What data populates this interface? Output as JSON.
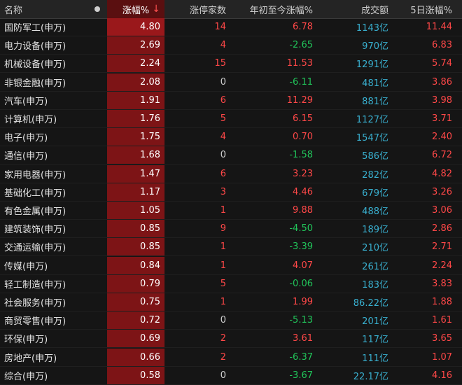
{
  "header": {
    "name": "名称",
    "pct": "涨幅%",
    "pct_arrow": "↓",
    "limit_up": "涨停家数",
    "ytd": "年初至今涨幅%",
    "volume": "成交额",
    "d5": "5日涨幅%"
  },
  "rows": [
    {
      "name": "国防军工(申万)",
      "pct": "4.80",
      "limit_up": "14",
      "ytd": "6.78",
      "volume": "1143亿",
      "d5": "11.44"
    },
    {
      "name": "电力设备(申万)",
      "pct": "2.69",
      "limit_up": "4",
      "ytd": "-2.65",
      "volume": "970亿",
      "d5": "6.83"
    },
    {
      "name": "机械设备(申万)",
      "pct": "2.24",
      "limit_up": "15",
      "ytd": "11.53",
      "volume": "1291亿",
      "d5": "5.74"
    },
    {
      "name": "非银金融(申万)",
      "pct": "2.08",
      "limit_up": "0",
      "ytd": "-6.11",
      "volume": "481亿",
      "d5": "3.86"
    },
    {
      "name": "汽车(申万)",
      "pct": "1.91",
      "limit_up": "6",
      "ytd": "11.29",
      "volume": "881亿",
      "d5": "3.98"
    },
    {
      "name": "计算机(申万)",
      "pct": "1.76",
      "limit_up": "5",
      "ytd": "6.15",
      "volume": "1127亿",
      "d5": "3.71"
    },
    {
      "name": "电子(申万)",
      "pct": "1.75",
      "limit_up": "4",
      "ytd": "0.70",
      "volume": "1547亿",
      "d5": "2.40"
    },
    {
      "name": "通信(申万)",
      "pct": "1.68",
      "limit_up": "0",
      "ytd": "-1.58",
      "volume": "586亿",
      "d5": "6.72"
    },
    {
      "name": "家用电器(申万)",
      "pct": "1.47",
      "limit_up": "6",
      "ytd": "3.23",
      "volume": "282亿",
      "d5": "4.82"
    },
    {
      "name": "基础化工(申万)",
      "pct": "1.17",
      "limit_up": "3",
      "ytd": "4.46",
      "volume": "679亿",
      "d5": "3.26"
    },
    {
      "name": "有色金属(申万)",
      "pct": "1.05",
      "limit_up": "1",
      "ytd": "9.88",
      "volume": "488亿",
      "d5": "3.06"
    },
    {
      "name": "建筑装饰(申万)",
      "pct": "0.85",
      "limit_up": "9",
      "ytd": "-4.50",
      "volume": "189亿",
      "d5": "2.86"
    },
    {
      "name": "交通运输(申万)",
      "pct": "0.85",
      "limit_up": "1",
      "ytd": "-3.39",
      "volume": "210亿",
      "d5": "2.71"
    },
    {
      "name": "传媒(申万)",
      "pct": "0.84",
      "limit_up": "1",
      "ytd": "4.07",
      "volume": "261亿",
      "d5": "2.24"
    },
    {
      "name": "轻工制造(申万)",
      "pct": "0.79",
      "limit_up": "5",
      "ytd": "-0.06",
      "volume": "183亿",
      "d5": "3.83"
    },
    {
      "name": "社会服务(申万)",
      "pct": "0.75",
      "limit_up": "1",
      "ytd": "1.99",
      "volume": "86.22亿",
      "d5": "1.88"
    },
    {
      "name": "商贸零售(申万)",
      "pct": "0.72",
      "limit_up": "0",
      "ytd": "-5.13",
      "volume": "201亿",
      "d5": "1.61"
    },
    {
      "name": "环保(申万)",
      "pct": "0.69",
      "limit_up": "2",
      "ytd": "3.61",
      "volume": "117亿",
      "d5": "3.65"
    },
    {
      "name": "房地产(申万)",
      "pct": "0.66",
      "limit_up": "2",
      "ytd": "-6.37",
      "volume": "111亿",
      "d5": "1.07"
    },
    {
      "name": "综合(申万)",
      "pct": "0.58",
      "limit_up": "0",
      "ytd": "-3.67",
      "volume": "22.17亿",
      "d5": "4.16"
    }
  ],
  "colors": {
    "up": "#ff4848",
    "down": "#21c45a",
    "neutral": "#cfcfcf",
    "volume": "#39b0d0",
    "pct_column_bg": "#7d1416"
  },
  "icons": {
    "column_toggle": "dot-icon",
    "sort": "sort-desc-arrow-icon"
  }
}
